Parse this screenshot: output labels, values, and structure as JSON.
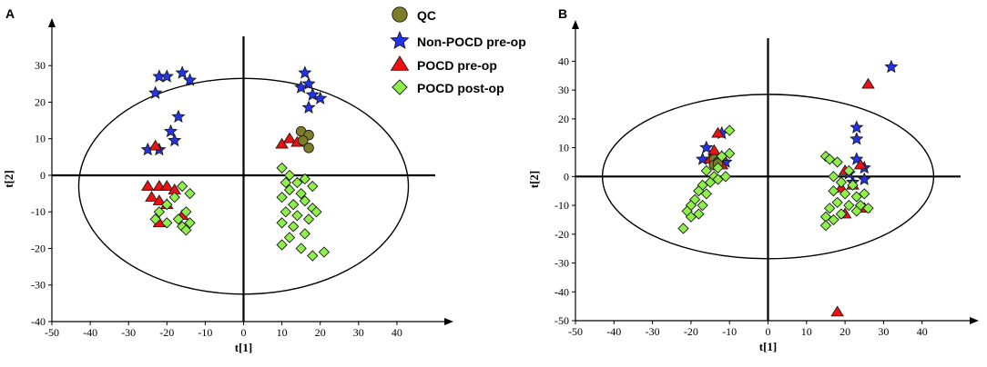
{
  "colors": {
    "qc": "#7d7d29",
    "non_pocd_pre": "#2233ee",
    "pocd_pre": "#ee1111",
    "pocd_post": "#8ff04a"
  },
  "legend": {
    "items": [
      {
        "key": "qc",
        "label": "QC",
        "marker": "circle"
      },
      {
        "key": "non_pocd_pre",
        "label": "Non-POCD pre-op",
        "marker": "star"
      },
      {
        "key": "pocd_pre",
        "label": "POCD pre-op",
        "marker": "triangle"
      },
      {
        "key": "pocd_post",
        "label": "POCD post-op",
        "marker": "diamond"
      }
    ]
  },
  "chart_data": [
    {
      "panel": "A",
      "type": "scatter",
      "title": "",
      "xlabel": "t[1]",
      "ylabel": "t[2]",
      "xlim": [
        -50,
        50
      ],
      "ylim": [
        -40,
        38
      ],
      "xticks": [
        -50,
        -40,
        -30,
        -20,
        -10,
        0,
        10,
        20,
        30,
        40
      ],
      "yticks": [
        -40,
        -30,
        -20,
        -10,
        0,
        10,
        20,
        30
      ],
      "ellipse": {
        "center": [
          0,
          -3
        ],
        "rx": 43,
        "ry": 29.5
      },
      "series": [
        {
          "key": "non_pocd_pre",
          "name": "Non-POCD pre-op",
          "points": [
            [
              -22,
              27
            ],
            [
              -20,
              27
            ],
            [
              -16,
              28
            ],
            [
              -14,
              26
            ],
            [
              -23,
              22.5
            ],
            [
              -17,
              16
            ],
            [
              -19,
              12
            ],
            [
              -18,
              9.5
            ],
            [
              -25,
              7
            ],
            [
              -22,
              7
            ],
            [
              16,
              28
            ],
            [
              17,
              25
            ],
            [
              15,
              24
            ],
            [
              18,
              22
            ],
            [
              20,
              21
            ],
            [
              17,
              18.5
            ]
          ]
        },
        {
          "key": "pocd_pre",
          "name": "POCD pre-op",
          "points": [
            [
              -23,
              8
            ],
            [
              -25,
              -3
            ],
            [
              -22,
              -3
            ],
            [
              -20,
              -3
            ],
            [
              -24,
              -6
            ],
            [
              -22,
              -7
            ],
            [
              -18,
              -4
            ],
            [
              -20,
              -8
            ],
            [
              -16,
              -11
            ],
            [
              -22,
              -13
            ],
            [
              10,
              8.5
            ],
            [
              12,
              10
            ],
            [
              14,
              9
            ]
          ]
        },
        {
          "key": "qc",
          "name": "QC",
          "points": [
            [
              15,
              12
            ],
            [
              17,
              11
            ],
            [
              15.5,
              9.5
            ],
            [
              17,
              7.5
            ]
          ]
        },
        {
          "key": "pocd_post",
          "name": "POCD post-op",
          "points": [
            [
              -16,
              -3
            ],
            [
              -14,
              -5
            ],
            [
              -18,
              -6
            ],
            [
              -20,
              -8
            ],
            [
              -22,
              -10
            ],
            [
              -15,
              -10
            ],
            [
              -17,
              -12
            ],
            [
              -20,
              -13
            ],
            [
              -14,
              -13
            ],
            [
              -16,
              -14
            ],
            [
              -23,
              -12
            ],
            [
              -15,
              -15
            ],
            [
              10,
              2
            ],
            [
              12,
              0
            ],
            [
              11,
              -2
            ],
            [
              14,
              -2
            ],
            [
              16,
              -1
            ],
            [
              18,
              -3
            ],
            [
              12,
              -4
            ],
            [
              15,
              -5
            ],
            [
              10,
              -6
            ],
            [
              13,
              -8
            ],
            [
              16,
              -7
            ],
            [
              18,
              -9
            ],
            [
              11,
              -10
            ],
            [
              14,
              -11
            ],
            [
              17,
              -12
            ],
            [
              19,
              -10
            ],
            [
              10,
              -13
            ],
            [
              13,
              -14
            ],
            [
              16,
              -16
            ],
            [
              12,
              -17
            ],
            [
              10,
              -19
            ],
            [
              15,
              -20
            ],
            [
              18,
              -22
            ],
            [
              21,
              -21
            ]
          ]
        }
      ]
    },
    {
      "panel": "B",
      "type": "scatter",
      "title": "",
      "xlabel": "t[1]",
      "ylabel": "t[2]",
      "xlim": [
        -50,
        50
      ],
      "ylim": [
        -50,
        48
      ],
      "xticks": [
        -50,
        -40,
        -30,
        -20,
        -10,
        0,
        10,
        20,
        30,
        40
      ],
      "yticks": [
        -50,
        -40,
        -30,
        -20,
        -10,
        0,
        10,
        20,
        30,
        40
      ],
      "ellipse": {
        "center": [
          0,
          0
        ],
        "rx": 43,
        "ry": 28.5
      },
      "series": [
        {
          "key": "non_pocd_pre",
          "name": "Non-POCD pre-op",
          "points": [
            [
              -16,
              10
            ],
            [
              -17,
              6
            ],
            [
              -12,
              15
            ],
            [
              -11,
              5
            ],
            [
              23,
              17
            ],
            [
              23,
              13
            ],
            [
              23,
              6
            ],
            [
              25,
              3
            ],
            [
              21,
              1
            ],
            [
              22,
              -2
            ],
            [
              25,
              -1
            ],
            [
              32,
              38
            ]
          ]
        },
        {
          "key": "pocd_pre",
          "name": "POCD pre-op",
          "points": [
            [
              -13,
              15
            ],
            [
              -14,
              9
            ],
            [
              -12,
              7
            ],
            [
              -15,
              6
            ],
            [
              -12,
              4
            ],
            [
              20,
              2
            ],
            [
              22,
              -3
            ],
            [
              19,
              -4
            ],
            [
              24,
              4
            ],
            [
              25,
              -11
            ],
            [
              20,
              -13
            ],
            [
              26,
              32
            ],
            [
              18,
              -47
            ]
          ]
        },
        {
          "key": "qc",
          "name": "QC",
          "points": [
            [
              -14,
              6
            ],
            [
              -13,
              5
            ],
            [
              -14,
              4
            ],
            [
              -13,
              4.5
            ]
          ]
        },
        {
          "key": "pocd_post",
          "name": "POCD post-op",
          "points": [
            [
              -10,
              16
            ],
            [
              -10,
              8
            ],
            [
              -12,
              7
            ],
            [
              -13,
              3
            ],
            [
              -14,
              0
            ],
            [
              -16,
              2
            ],
            [
              -15,
              -2
            ],
            [
              -17,
              -3
            ],
            [
              -18,
              -5
            ],
            [
              -16,
              -6
            ],
            [
              -19,
              -8
            ],
            [
              -20,
              -10
            ],
            [
              -21,
              -12
            ],
            [
              -18,
              -13
            ],
            [
              -20,
              -14
            ],
            [
              -22,
              -18
            ],
            [
              -13,
              -1
            ],
            [
              -11,
              0
            ],
            [
              -17,
              -10
            ],
            [
              15,
              7
            ],
            [
              16,
              6
            ],
            [
              18,
              5
            ],
            [
              21,
              2
            ],
            [
              17,
              0
            ],
            [
              19,
              -2
            ],
            [
              22,
              -3
            ],
            [
              17,
              -5
            ],
            [
              20,
              -6
            ],
            [
              23,
              -7
            ],
            [
              25,
              -6
            ],
            [
              18,
              -9
            ],
            [
              21,
              -10
            ],
            [
              24,
              -10
            ],
            [
              16,
              -11
            ],
            [
              19,
              -13
            ],
            [
              23,
              -12
            ],
            [
              26,
              -11
            ],
            [
              15,
              -14
            ],
            [
              17,
              -15
            ],
            [
              15,
              -17
            ]
          ]
        }
      ]
    }
  ]
}
